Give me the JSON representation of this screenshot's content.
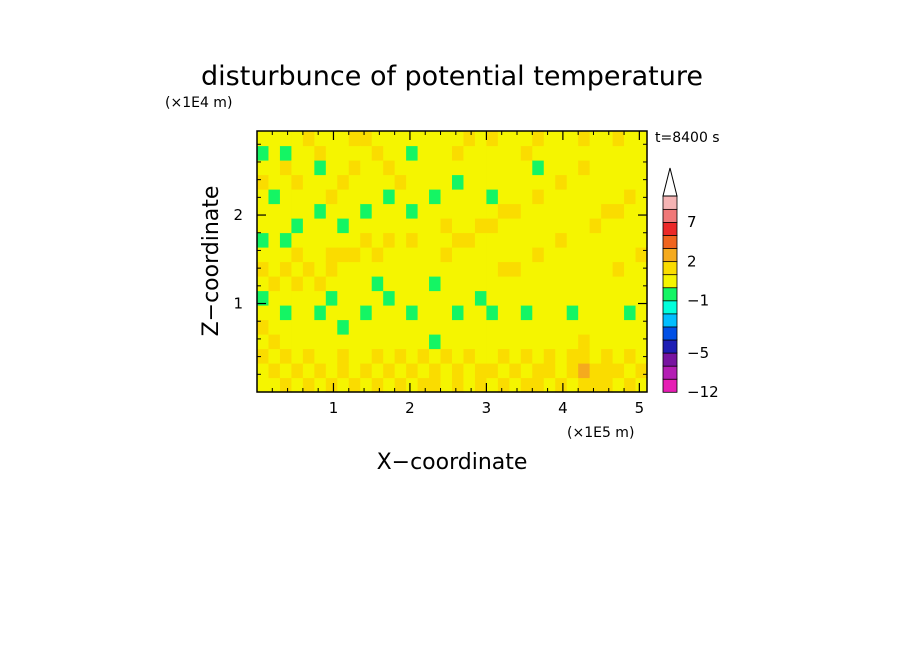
{
  "chart_data": {
    "type": "heatmap",
    "title": "disturbunce of potential temperature",
    "time_label": "t=8400 s",
    "xlabel": "X−coordinate",
    "ylabel": "Z−coordinate",
    "x_unit": "(×1E5 m)",
    "y_unit": "(×1E4 m)",
    "xlim": [
      0,
      5.1
    ],
    "ylim": [
      0,
      2.95
    ],
    "x_ticks": [
      1,
      2,
      3,
      4,
      5
    ],
    "y_ticks": [
      1,
      2
    ],
    "x_tick_labels": [
      "1",
      "2",
      "3",
      "4",
      "5"
    ],
    "y_tick_labels": [
      "1",
      "2"
    ],
    "colorbar": {
      "levels": [
        -12,
        -9,
        -7,
        -5,
        -4,
        -3,
        -2,
        -1,
        0,
        1,
        2,
        3,
        5,
        7,
        9,
        11
      ],
      "labels": [
        {
          "value": -12,
          "text": "−12"
        },
        {
          "value": -5,
          "text": "−5"
        },
        {
          "value": -1,
          "text": "−1"
        },
        {
          "value": 2,
          "text": "2"
        },
        {
          "value": 7,
          "text": "7"
        }
      ],
      "colors": [
        "#e61eb4",
        "#b41eb4",
        "#7814a0",
        "#1e1eb4",
        "#0050e6",
        "#00beff",
        "#00ffdc",
        "#14f564",
        "#f5f500",
        "#fadc00",
        "#f5aa1e",
        "#f0641e",
        "#eb2828",
        "#f07878",
        "#f5b4b4"
      ],
      "extend_top": true
    },
    "grid_cols": [
      {
        "x": 0.05,
        "values": [
          0.7,
          0.9,
          1.3,
          0.8,
          1.6,
          0.1,
          -0.2,
          0.8,
          1.1,
          0.3,
          -0.1,
          0.4,
          0.2,
          0.9,
          1.2,
          0.5,
          -0.3,
          0.6
        ]
      },
      {
        "x": 0.2,
        "values": [
          0.9,
          1.1,
          0.6,
          1.4,
          0.5,
          0.0,
          0.3,
          1.0,
          0.6,
          0.2,
          0.0,
          0.7,
          0.3,
          -0.1,
          0.8,
          0.9,
          0.1,
          0.5
        ]
      },
      {
        "x": 0.35,
        "values": [
          1.2,
          0.6,
          1.2,
          0.4,
          0.3,
          -0.2,
          0.2,
          0.9,
          1.3,
          0.5,
          -0.4,
          0.1,
          0.6,
          0.2,
          0.4,
          1.1,
          -0.2,
          0.3
        ]
      },
      {
        "x": 0.5,
        "values": [
          0.8,
          1.3,
          0.9,
          0.5,
          0.1,
          0.2,
          0.1,
          1.2,
          0.9,
          1.0,
          0.3,
          -0.2,
          0.8,
          0.4,
          1.0,
          0.6,
          0.2,
          0.9
        ]
      },
      {
        "x": 0.65,
        "values": [
          1.0,
          0.7,
          1.5,
          0.3,
          0.5,
          0.0,
          0.6,
          0.7,
          1.1,
          0.4,
          0.2,
          0.5,
          0.1,
          0.7,
          0.3,
          0.2,
          0.7,
          1.2
        ]
      },
      {
        "x": 0.8,
        "values": [
          0.6,
          1.2,
          0.8,
          0.2,
          0.2,
          -0.3,
          0.2,
          1.4,
          0.6,
          0.7,
          0.6,
          0.3,
          -0.1,
          0.9,
          0.5,
          -0.1,
          1.0,
          0.8
        ]
      },
      {
        "x": 0.95,
        "values": [
          1.3,
          0.9,
          0.6,
          0.6,
          0.0,
          0.1,
          -0.1,
          0.9,
          1.0,
          1.2,
          0.4,
          0.0,
          0.4,
          1.1,
          0.9,
          0.3,
          0.6,
          0.4
        ]
      },
      {
        "x": 1.1,
        "values": [
          0.8,
          1.1,
          1.3,
          0.4,
          -0.1,
          0.3,
          0.1,
          0.5,
          0.8,
          1.3,
          0.2,
          -0.3,
          0.7,
          0.6,
          1.3,
          0.8,
          0.2,
          0.7
        ]
      },
      {
        "x": 1.25,
        "values": [
          1.1,
          0.5,
          0.9,
          0.2,
          0.4,
          0.0,
          0.5,
          0.2,
          0.6,
          1.0,
          0.5,
          0.1,
          0.3,
          0.2,
          0.9,
          1.2,
          0.4,
          1.1
        ]
      },
      {
        "x": 1.4,
        "values": [
          0.7,
          1.2,
          0.5,
          0.7,
          0.2,
          -0.2,
          0.3,
          0.0,
          0.4,
          0.8,
          1.1,
          0.3,
          -0.2,
          0.5,
          0.4,
          0.6,
          0.9,
          1.3
        ]
      },
      {
        "x": 1.55,
        "values": [
          1.4,
          0.8,
          1.1,
          0.3,
          0.1,
          0.1,
          0.1,
          -0.1,
          0.3,
          1.2,
          0.7,
          0.6,
          0.2,
          0.1,
          0.8,
          0.3,
          1.2,
          0.6
        ]
      },
      {
        "x": 1.7,
        "values": [
          0.9,
          1.0,
          0.7,
          0.5,
          0.3,
          0.4,
          -0.2,
          0.1,
          0.5,
          0.9,
          1.0,
          0.2,
          0.6,
          -0.4,
          0.5,
          1.0,
          0.5,
          0.3
        ]
      },
      {
        "x": 1.85,
        "values": [
          1.2,
          0.6,
          1.3,
          0.6,
          0.0,
          0.2,
          0.0,
          0.3,
          0.2,
          0.6,
          0.8,
          0.0,
          0.3,
          0.2,
          1.1,
          0.7,
          0.1,
          0.5
        ]
      },
      {
        "x": 2.0,
        "values": [
          0.8,
          1.1,
          0.9,
          0.4,
          0.2,
          -0.1,
          0.2,
          0.1,
          0.6,
          0.4,
          1.2,
          0.4,
          -0.3,
          0.6,
          0.7,
          0.2,
          -0.2,
          0.8
        ]
      },
      {
        "x": 2.15,
        "values": [
          1.0,
          0.8,
          1.2,
          0.2,
          0.4,
          0.1,
          0.4,
          0.0,
          0.9,
          0.7,
          0.9,
          0.5,
          0.0,
          0.3,
          0.4,
          0.9,
          0.3,
          0.6
        ]
      },
      {
        "x": 2.3,
        "values": [
          1.3,
          1.4,
          0.6,
          -0.6,
          0.1,
          0.3,
          0.2,
          -0.2,
          0.7,
          0.9,
          0.6,
          0.7,
          0.5,
          -0.1,
          0.8,
          0.6,
          0.8,
          0.4
        ]
      },
      {
        "x": 2.45,
        "values": [
          0.9,
          0.7,
          1.0,
          0.5,
          0.2,
          0.0,
          0.1,
          0.2,
          0.4,
          1.1,
          0.8,
          1.0,
          0.2,
          0.1,
          0.5,
          0.1,
          0.7,
          0.9
        ]
      },
      {
        "x": 2.6,
        "values": [
          1.1,
          1.2,
          0.8,
          0.3,
          0.0,
          -0.2,
          0.3,
          0.1,
          0.2,
          0.8,
          1.2,
          0.6,
          0.7,
          0.4,
          -0.2,
          0.5,
          1.1,
          0.7
        ]
      },
      {
        "x": 2.75,
        "values": [
          0.7,
          0.9,
          1.1,
          0.6,
          0.2,
          0.2,
          0.0,
          0.5,
          0.1,
          0.6,
          1.0,
          0.8,
          0.9,
          0.2,
          0.6,
          0.9,
          0.4,
          1.2
        ]
      },
      {
        "x": 2.9,
        "values": [
          1.2,
          1.0,
          0.5,
          0.4,
          0.4,
          0.1,
          -0.1,
          0.6,
          0.4,
          0.3,
          0.9,
          1.1,
          0.4,
          0.0,
          0.3,
          0.4,
          0.2,
          0.8
        ]
      },
      {
        "x": 3.05,
        "values": [
          0.8,
          1.3,
          0.9,
          0.5,
          0.1,
          -0.1,
          0.2,
          0.4,
          0.8,
          0.2,
          0.5,
          1.2,
          0.6,
          -0.3,
          0.7,
          0.2,
          0.8,
          1.0
        ]
      },
      {
        "x": 3.2,
        "values": [
          1.0,
          0.7,
          1.4,
          0.3,
          0.3,
          0.2,
          0.1,
          0.7,
          1.0,
          0.4,
          0.3,
          0.9,
          1.0,
          0.1,
          0.4,
          0.8,
          0.3,
          0.6
        ]
      },
      {
        "x": 3.35,
        "values": [
          0.9,
          1.1,
          0.6,
          0.6,
          0.2,
          0.0,
          0.3,
          0.5,
          1.2,
          0.6,
          0.1,
          0.7,
          1.2,
          0.5,
          0.2,
          0.7,
          0.5,
          0.9
        ]
      },
      {
        "x": 3.5,
        "values": [
          1.3,
          0.8,
          1.0,
          0.4,
          0.0,
          -0.2,
          0.1,
          0.3,
          0.9,
          0.9,
          0.4,
          0.5,
          0.8,
          0.9,
          0.1,
          0.3,
          1.0,
          0.7
        ]
      },
      {
        "x": 3.65,
        "values": [
          1.1,
          1.0,
          0.8,
          0.2,
          0.2,
          0.1,
          0.0,
          0.2,
          0.7,
          1.1,
          0.6,
          0.3,
          0.6,
          1.1,
          0.4,
          -0.2,
          0.6,
          1.1
        ]
      },
      {
        "x": 3.8,
        "values": [
          0.7,
          1.2,
          1.2,
          0.5,
          0.3,
          0.3,
          0.2,
          0.1,
          0.5,
          0.8,
          0.9,
          0.2,
          0.3,
          0.8,
          0.7,
          0.2,
          0.4,
          0.8
        ]
      },
      {
        "x": 3.95,
        "values": [
          1.2,
          0.9,
          0.7,
          0.7,
          0.1,
          0.0,
          0.4,
          0.0,
          0.3,
          0.6,
          1.1,
          0.4,
          0.1,
          0.5,
          1.0,
          0.6,
          0.8,
          0.5
        ]
      },
      {
        "x": 4.1,
        "values": [
          0.9,
          1.1,
          1.1,
          0.4,
          0.4,
          -0.1,
          0.2,
          0.2,
          0.2,
          0.4,
          0.8,
          0.7,
          0.2,
          0.3,
          0.8,
          0.9,
          0.5,
          0.9
        ]
      },
      {
        "x": 4.25,
        "values": [
          1.4,
          2.3,
          1.5,
          1.2,
          0.2,
          0.2,
          0.1,
          0.1,
          0.4,
          0.2,
          0.6,
          0.9,
          0.5,
          0.1,
          0.5,
          1.1,
          0.3,
          1.0
        ]
      },
      {
        "x": 4.4,
        "values": [
          1.0,
          1.3,
          0.9,
          0.6,
          0.0,
          0.1,
          0.3,
          0.0,
          0.6,
          0.3,
          0.4,
          1.0,
          0.7,
          0.4,
          0.2,
          0.8,
          0.7,
          0.6
        ]
      },
      {
        "x": 4.55,
        "values": [
          1.3,
          1.0,
          1.2,
          0.3,
          0.3,
          0.0,
          0.2,
          0.4,
          0.8,
          0.5,
          0.3,
          0.8,
          1.0,
          0.6,
          0.1,
          0.5,
          0.9,
          0.8
        ]
      },
      {
        "x": 4.7,
        "values": [
          0.8,
          1.2,
          0.8,
          0.5,
          0.2,
          0.2,
          0.1,
          0.6,
          1.0,
          0.7,
          0.2,
          0.6,
          1.1,
          0.8,
          0.3,
          0.4,
          0.6,
          1.1
        ]
      },
      {
        "x": 4.85,
        "values": [
          1.1,
          0.9,
          1.0,
          0.4,
          0.1,
          -0.1,
          0.0,
          0.3,
          0.7,
          0.9,
          0.5,
          0.4,
          0.9,
          1.0,
          0.6,
          0.7,
          0.4,
          0.7
        ]
      },
      {
        "x": 5.0,
        "values": [
          0.9,
          1.1,
          0.7,
          0.6,
          0.3,
          0.1,
          0.2,
          0.5,
          0.9,
          1.0,
          0.7,
          0.3,
          0.6,
          0.9,
          0.8,
          0.9,
          0.7,
          0.9
        ]
      }
    ],
    "grid_z": [
      0.08,
      0.24,
      0.4,
      0.56,
      0.72,
      0.88,
      1.04,
      1.2,
      1.36,
      1.52,
      1.68,
      1.84,
      2.0,
      2.16,
      2.32,
      2.48,
      2.64,
      2.8
    ]
  }
}
